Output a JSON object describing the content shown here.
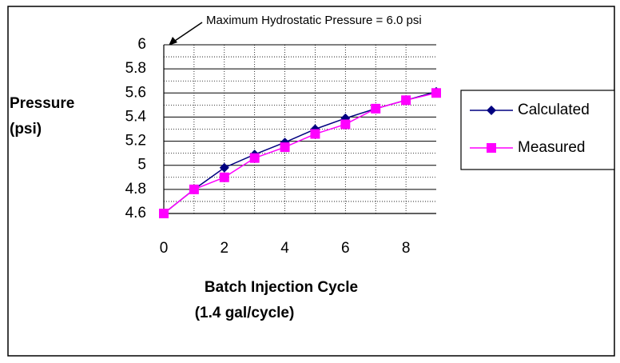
{
  "chart_data": {
    "type": "line",
    "annotation": "Maximum Hydrostatic Pressure = 6.0 psi",
    "ylabel": [
      "Pressure",
      "(psi)"
    ],
    "xlabel": [
      "Batch Injection Cycle",
      "(1.4 gal/cycle)"
    ],
    "x": [
      0,
      1,
      2,
      3,
      4,
      5,
      6,
      7,
      8,
      9
    ],
    "series": [
      {
        "name": "Calculated",
        "color": "#000080",
        "marker": "diamond",
        "values": [
          4.6,
          4.8,
          4.98,
          5.09,
          5.19,
          5.3,
          5.39,
          5.47,
          5.54,
          5.61
        ]
      },
      {
        "name": "Measured",
        "color": "#ff00ff",
        "marker": "square",
        "values": [
          4.6,
          4.8,
          4.9,
          5.06,
          5.15,
          5.26,
          5.34,
          5.47,
          5.54,
          5.6
        ]
      }
    ],
    "xlim": [
      0,
      9
    ],
    "xticks": [
      0,
      2,
      4,
      6,
      8
    ],
    "ylim": [
      4.6,
      6
    ],
    "yticks": [
      4.6,
      4.8,
      5,
      5.2,
      5.4,
      5.6,
      5.8,
      6
    ],
    "grid": true,
    "legend": "right"
  }
}
